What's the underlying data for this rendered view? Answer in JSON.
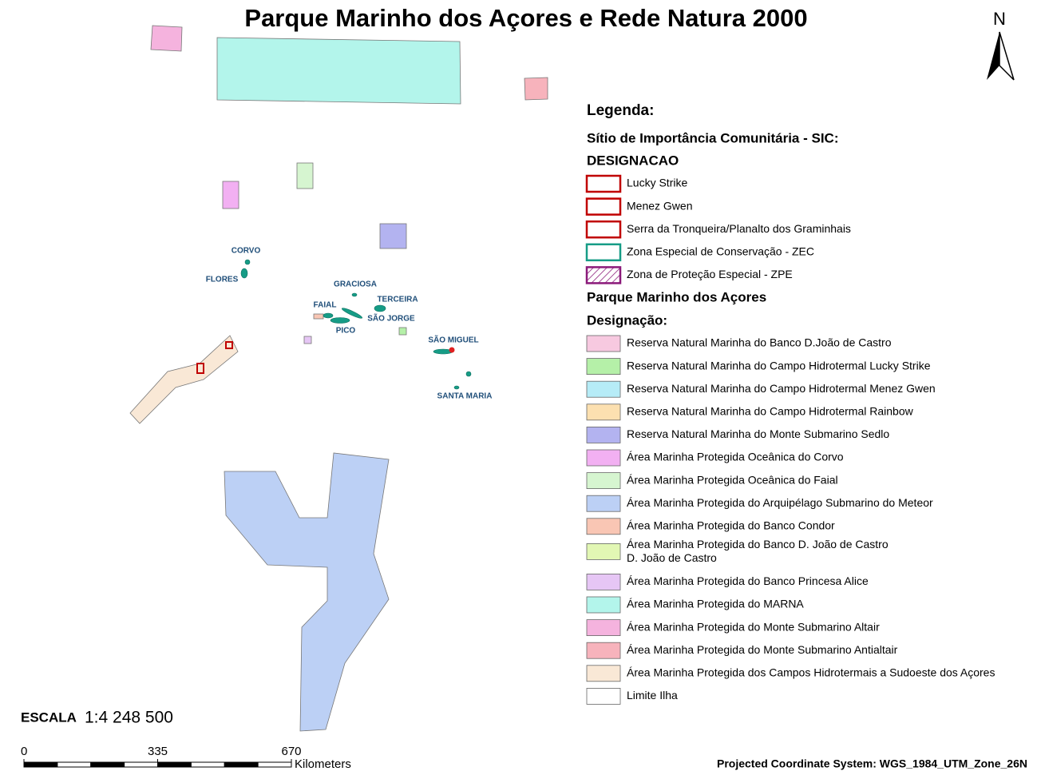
{
  "header": {
    "title": "Parque Marinho dos Açores e Rede Natura 2000",
    "north": "N"
  },
  "islands": [
    "CORVO",
    "FLORES",
    "GRACIOSA",
    "TERCEIRA",
    "FAIAL",
    "SÃO JORGE",
    "PICO",
    "SÃO MIGUEL",
    "SANTA MARIA"
  ],
  "legend": {
    "title": "Legenda:",
    "sic_heading": "Sítio de Importância Comunitária - SIC:",
    "sic_subheading": "DESIGNACAO",
    "sic_items": [
      {
        "label": "Lucky Strike",
        "color": "#c00000"
      },
      {
        "label": "Menez Gwen",
        "color": "#c00000"
      },
      {
        "label": "Serra da Tronqueira/Planalto dos Graminhais",
        "color": "#c00000"
      },
      {
        "label": "Zona Especial de Conservação - ZEC",
        "color": "#169c86"
      },
      {
        "label": "Zona de Proteção Especial - ZPE",
        "color": "#8b1a7a"
      }
    ],
    "park_heading": "Parque Marinho dos Açores",
    "park_subheading": "Designação:",
    "park_items": [
      {
        "label": "Reserva Natural Marinha do Banco D.João de Castro",
        "color": "#f7c9e0"
      },
      {
        "label": "Reserva Natural Marinha do Campo Hidrotermal Lucky Strike",
        "color": "#b5f0a8"
      },
      {
        "label": "Reserva Natural Marinha do Campo Hidrotermal Menez Gwen",
        "color": "#b6ecf7"
      },
      {
        "label": "Reserva Natural Marinha do Campo Hidrotermal Rainbow",
        "color": "#fce0b0"
      },
      {
        "label": "Reserva Natural Marinha do Monte Submarino Sedlo",
        "color": "#b3b3f0"
      },
      {
        "label": "Área Marinha Protegida Oceânica do Corvo",
        "color": "#f2b0f2"
      },
      {
        "label": "Área Marinha Protegida Oceânica do Faial",
        "color": "#d6f5d0"
      },
      {
        "label": "Área Marinha Protegida do Arquipélago Submarino do Meteor",
        "color": "#bcd0f5"
      },
      {
        "label": "Área Marinha Protegida do Banco Condor",
        "color": "#f9c6b4"
      },
      {
        "label": [
          "Área Marinha Protegida do Banco D. João de Castro",
          "D. João de Castro"
        ],
        "color": "#e2f7b4"
      },
      {
        "label": "Área Marinha Protegida do Banco Princesa Alice",
        "color": "#e6c6f5"
      },
      {
        "label": "Área Marinha Protegida do MARNA",
        "color": "#b3f5eb"
      },
      {
        "label": "Área Marinha Protegida do Monte Submarino Altair",
        "color": "#f5b3de"
      },
      {
        "label": "Área Marinha Protegida do Monte Submarino Antialtair",
        "color": "#f7b3bc"
      },
      {
        "label": "Área Marinha Protegida dos Campos Hidrotermais a Sudoeste dos Açores",
        "color": "#f9e8d6"
      },
      {
        "label": "Limite Ilha",
        "color": "#ffffff"
      }
    ]
  },
  "scale": {
    "label": "ESCALA",
    "ratio": "1:4 248 500",
    "ticks": [
      0,
      335,
      670
    ],
    "unit": "Kilometers"
  },
  "footer": {
    "projection": "Projected Coordinate System:  WGS_1984_UTM_Zone_26N"
  }
}
